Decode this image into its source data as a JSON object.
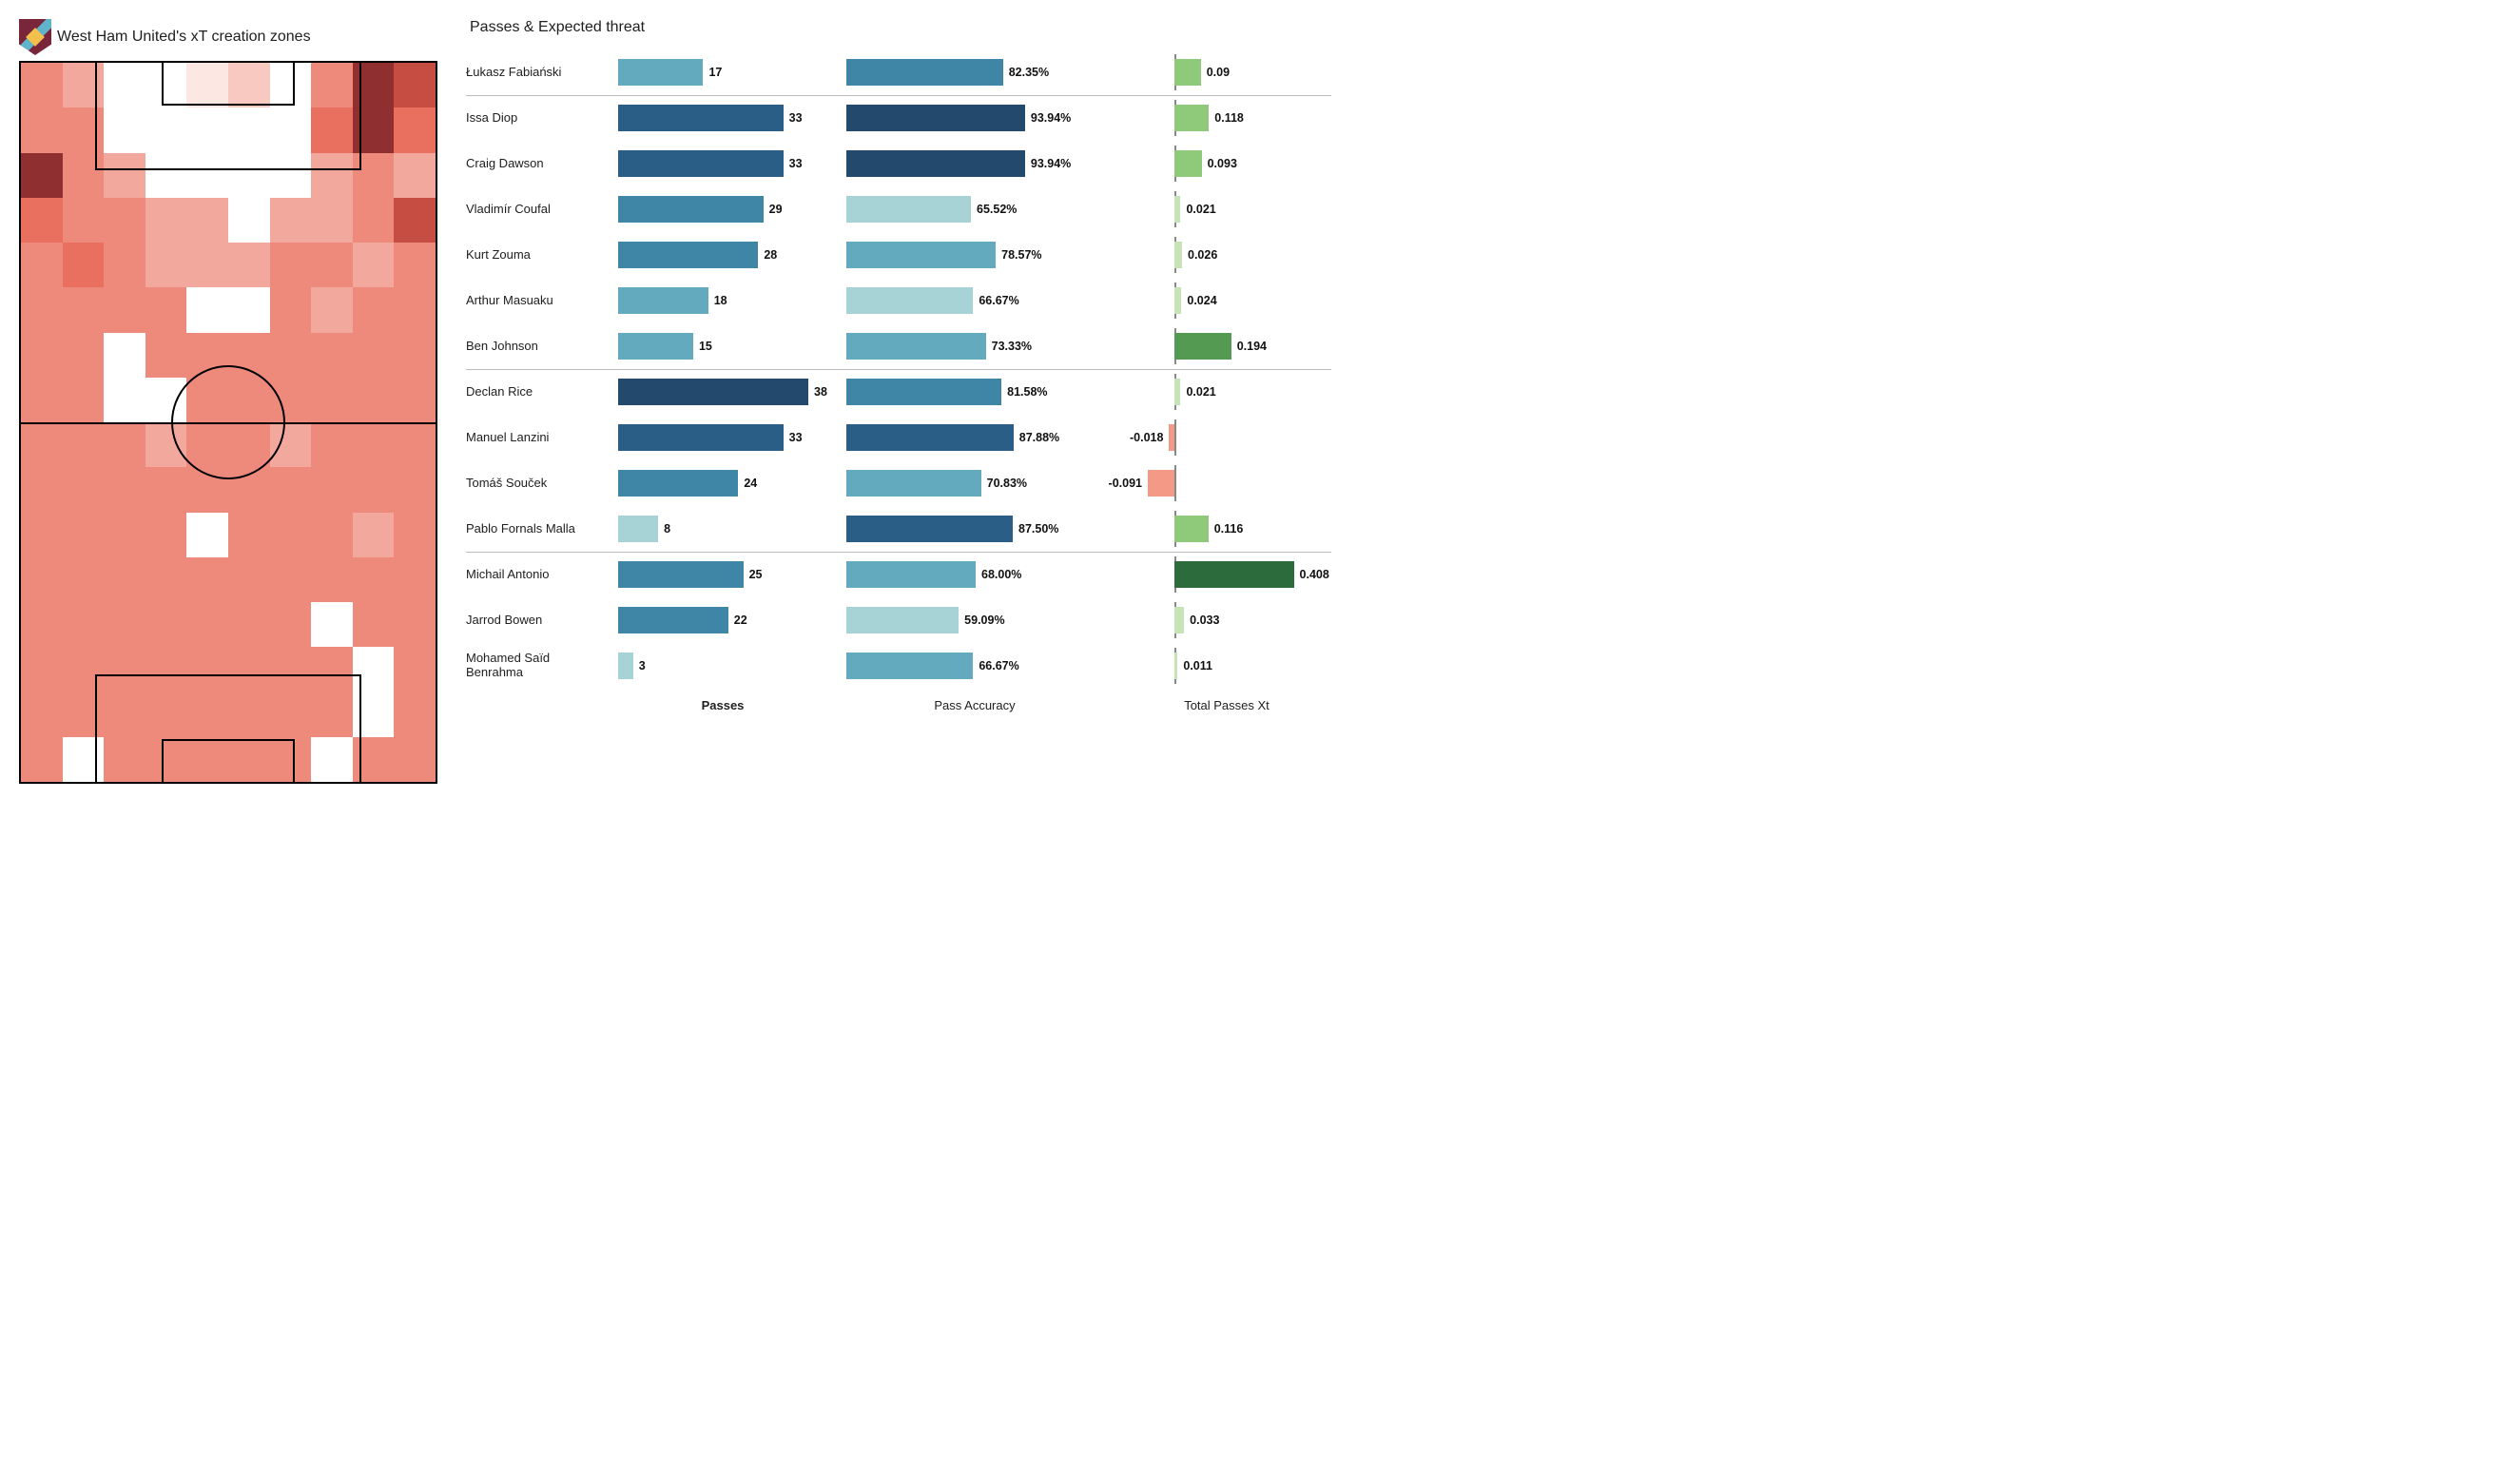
{
  "heatmap": {
    "title": "West Ham United's xT creation zones",
    "cols": 10,
    "rows": 16,
    "colors": {
      "0": "#ffffff",
      "1": "#fde7e3",
      "2": "#f8c9c1",
      "3": "#f3a89d",
      "4": "#ee8a7c",
      "5": "#e9705f",
      "6": "#c54d42",
      "7": "#8f2f2f"
    },
    "cells": [
      [
        4,
        3,
        0,
        0,
        1,
        2,
        0,
        4,
        7,
        6
      ],
      [
        4,
        4,
        0,
        0,
        0,
        0,
        0,
        5,
        7,
        5
      ],
      [
        7,
        4,
        3,
        0,
        0,
        0,
        0,
        3,
        4,
        3
      ],
      [
        5,
        4,
        4,
        3,
        3,
        0,
        3,
        3,
        4,
        6
      ],
      [
        4,
        5,
        4,
        3,
        3,
        3,
        4,
        4,
        3,
        4
      ],
      [
        4,
        4,
        4,
        4,
        0,
        0,
        4,
        3,
        4,
        4
      ],
      [
        4,
        4,
        0,
        4,
        4,
        4,
        4,
        4,
        4,
        4
      ],
      [
        4,
        4,
        0,
        0,
        4,
        4,
        4,
        4,
        4,
        4
      ],
      [
        4,
        4,
        4,
        3,
        4,
        4,
        3,
        4,
        4,
        4
      ],
      [
        4,
        4,
        4,
        4,
        4,
        4,
        4,
        4,
        4,
        4
      ],
      [
        4,
        4,
        4,
        4,
        0,
        4,
        4,
        4,
        3,
        4
      ],
      [
        4,
        4,
        4,
        4,
        4,
        4,
        4,
        4,
        4,
        4
      ],
      [
        4,
        4,
        4,
        4,
        4,
        4,
        4,
        0,
        4,
        4
      ],
      [
        4,
        4,
        4,
        4,
        4,
        4,
        4,
        4,
        0,
        4
      ],
      [
        4,
        4,
        4,
        4,
        4,
        4,
        4,
        4,
        0,
        4
      ],
      [
        4,
        0,
        4,
        4,
        4,
        4,
        4,
        0,
        4,
        4
      ]
    ]
  },
  "bars": {
    "title": "Passes & Expected threat",
    "passes_max": 38,
    "accuracy_max": 100,
    "xt_min": -0.1,
    "xt_max": 0.42,
    "pass_scale": {
      "low": "#a7d2d6",
      "mid1": "#63aabf",
      "mid2": "#3f86a6",
      "high": "#2a5e87",
      "dark": "#234a6c"
    },
    "xt_scale": {
      "neg": "#f39a86",
      "low": "#c6e4b6",
      "mid": "#8fc97a",
      "high": "#559a52",
      "dark": "#2b6b3c"
    },
    "column_labels": {
      "passes": "Passes",
      "accuracy": "Pass Accuracy",
      "xt": "Total Passes Xt"
    },
    "groups": [
      {
        "players": [
          {
            "name": "Łukasz Fabiański",
            "passes": 17,
            "pass_color": "mid1",
            "accuracy": 82.35,
            "acc_color": "mid2",
            "xt": 0.09,
            "xt_color": "mid"
          }
        ]
      },
      {
        "players": [
          {
            "name": "Issa Diop",
            "passes": 33,
            "pass_color": "high",
            "accuracy": 93.94,
            "acc_color": "dark",
            "xt": 0.118,
            "xt_color": "mid"
          },
          {
            "name": "Craig Dawson",
            "passes": 33,
            "pass_color": "high",
            "accuracy": 93.94,
            "acc_color": "dark",
            "xt": 0.093,
            "xt_color": "mid"
          },
          {
            "name": "Vladimír Coufal",
            "passes": 29,
            "pass_color": "mid2",
            "accuracy": 65.52,
            "acc_color": "low",
            "xt": 0.021,
            "xt_color": "low"
          },
          {
            "name": "Kurt Zouma",
            "passes": 28,
            "pass_color": "mid2",
            "accuracy": 78.57,
            "acc_color": "mid1",
            "xt": 0.026,
            "xt_color": "low"
          },
          {
            "name": "Arthur Masuaku",
            "passes": 18,
            "pass_color": "mid1",
            "accuracy": 66.67,
            "acc_color": "low",
            "xt": 0.024,
            "xt_color": "low"
          },
          {
            "name": "Ben Johnson",
            "passes": 15,
            "pass_color": "mid1",
            "accuracy": 73.33,
            "acc_color": "mid1",
            "xt": 0.194,
            "xt_color": "high"
          }
        ]
      },
      {
        "players": [
          {
            "name": "Declan Rice",
            "passes": 38,
            "pass_color": "dark",
            "accuracy": 81.58,
            "acc_color": "mid2",
            "xt": 0.021,
            "xt_color": "low"
          },
          {
            "name": "Manuel Lanzini",
            "passes": 33,
            "pass_color": "high",
            "accuracy": 87.88,
            "acc_color": "high",
            "xt": -0.018,
            "xt_color": "neg"
          },
          {
            "name": "Tomáš Souček",
            "passes": 24,
            "pass_color": "mid2",
            "accuracy": 70.83,
            "acc_color": "mid1",
            "xt": -0.091,
            "xt_color": "neg"
          },
          {
            "name": "Pablo Fornals Malla",
            "passes": 8,
            "pass_color": "low",
            "accuracy": 87.5,
            "acc_color": "high",
            "xt": 0.116,
            "xt_color": "mid"
          }
        ]
      },
      {
        "players": [
          {
            "name": "Michail Antonio",
            "passes": 25,
            "pass_color": "mid2",
            "accuracy": 68.0,
            "acc_color": "mid1",
            "xt": 0.408,
            "xt_color": "dark"
          },
          {
            "name": "Jarrod Bowen",
            "passes": 22,
            "pass_color": "mid2",
            "accuracy": 59.09,
            "acc_color": "low",
            "xt": 0.033,
            "xt_color": "low"
          },
          {
            "name": "Mohamed Saïd Benrahma",
            "passes": 3,
            "pass_color": "low",
            "accuracy": 66.67,
            "acc_color": "mid1",
            "xt": 0.011,
            "xt_color": "low"
          }
        ]
      }
    ]
  }
}
